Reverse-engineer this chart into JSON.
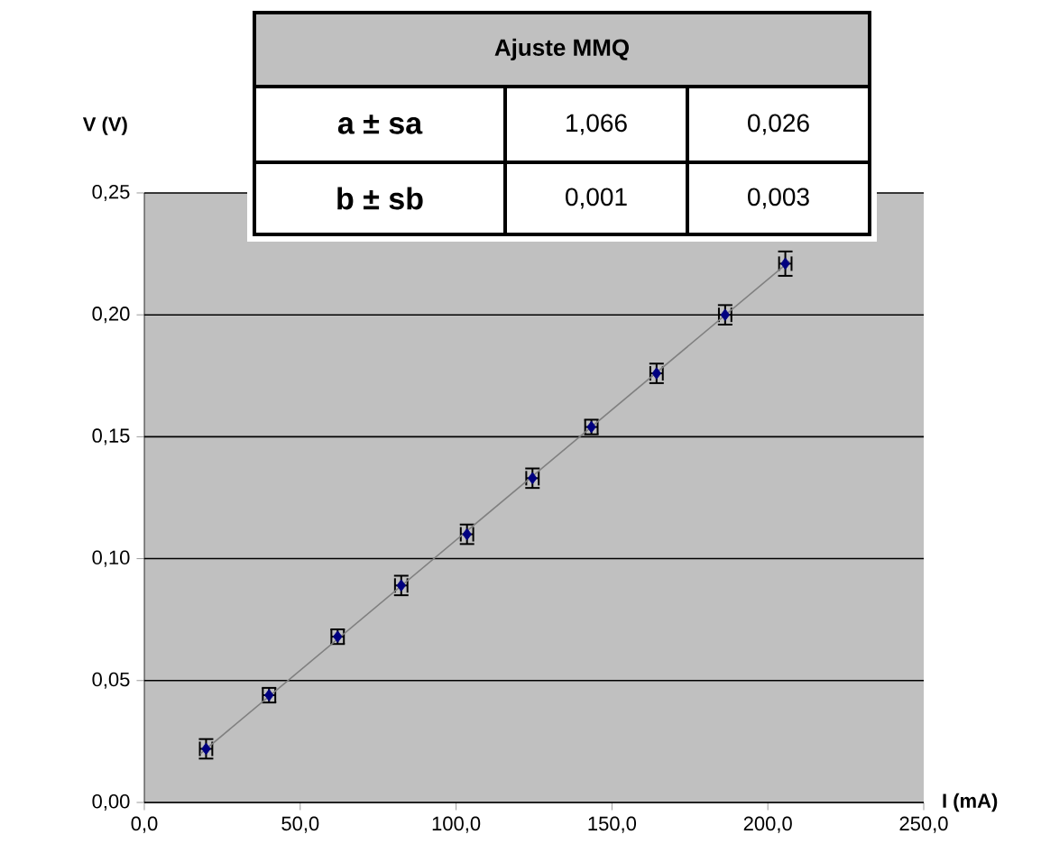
{
  "chart_data": {
    "type": "scatter",
    "xlabel": "I (mA)",
    "ylabel": "V (V)",
    "xlim": [
      0,
      250
    ],
    "ylim": [
      0,
      0.25
    ],
    "xticks": [
      {
        "value": 0,
        "label": "0,0"
      },
      {
        "value": 50,
        "label": "50,0"
      },
      {
        "value": 100,
        "label": "100,0"
      },
      {
        "value": 150,
        "label": "150,0"
      },
      {
        "value": 200,
        "label": "200,0"
      },
      {
        "value": 250,
        "label": "250,0"
      }
    ],
    "yticks": [
      {
        "value": 0,
        "label": "0,00"
      },
      {
        "value": 0.05,
        "label": "0,05"
      },
      {
        "value": 0.1,
        "label": "0,10"
      },
      {
        "value": 0.15,
        "label": "0,15"
      },
      {
        "value": 0.2,
        "label": "0,20"
      },
      {
        "value": 0.25,
        "label": "0,25"
      }
    ],
    "grid": "y",
    "series": [
      {
        "color": "#000080",
        "marker": "diamond",
        "x": [
          19.8,
          40,
          62,
          82.4,
          103.5,
          124.5,
          143.4,
          164.3,
          186.3,
          205.6
        ],
        "values": [
          0.022,
          0.044,
          0.068,
          0.089,
          0.11,
          0.133,
          0.154,
          0.176,
          0.2,
          0.221
        ],
        "errors": [
          0.004,
          0.003,
          0.003,
          0.004,
          0.004,
          0.004,
          0.003,
          0.004,
          0.004,
          0.005
        ],
        "xerrors": [
          2,
          2,
          2,
          2,
          2,
          2,
          2,
          2,
          2,
          2
        ]
      },
      {
        "type": "line",
        "color": "#808080",
        "marker": "none",
        "x": [
          18,
          207
        ],
        "values": [
          0.02,
          0.222
        ]
      }
    ],
    "annotations": [
      "Ajuste MMQ",
      "a ± sa",
      "1,066",
      "0,026",
      "b ± sb",
      "0,001",
      "0,003"
    ]
  }
}
